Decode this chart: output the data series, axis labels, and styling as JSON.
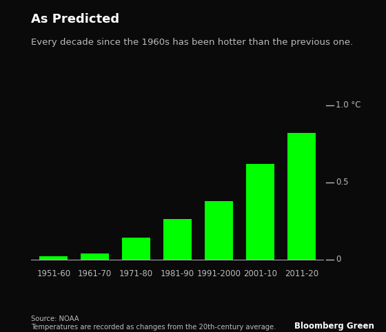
{
  "categories": [
    "1951-60",
    "1961-70",
    "1971-80",
    "1981-90",
    "1991-2000",
    "2001-10",
    "2011-20"
  ],
  "values": [
    0.02,
    0.04,
    0.14,
    0.26,
    0.38,
    0.62,
    0.82
  ],
  "bar_color": "#00ff00",
  "background_color": "#0a0a0a",
  "title": "As Predicted",
  "subtitle": "Every decade since the 1960s has been hotter than the previous one.",
  "ytick_labels": [
    "0",
    "0.5",
    "1.0 °C"
  ],
  "ytick_values": [
    0,
    0.5,
    1.0
  ],
  "ymin": -0.04,
  "ymax": 1.08,
  "source_text": "Source: NOAA\nTemperatures are recorded as changes from the 20th-century average.",
  "brand_text": "Bloomberg Green",
  "title_fontsize": 13,
  "subtitle_fontsize": 9.5,
  "tick_label_fontsize": 8.5,
  "axis_label_color": "#bbbbbb",
  "text_color": "#ffffff",
  "brand_color": "#ffffff"
}
